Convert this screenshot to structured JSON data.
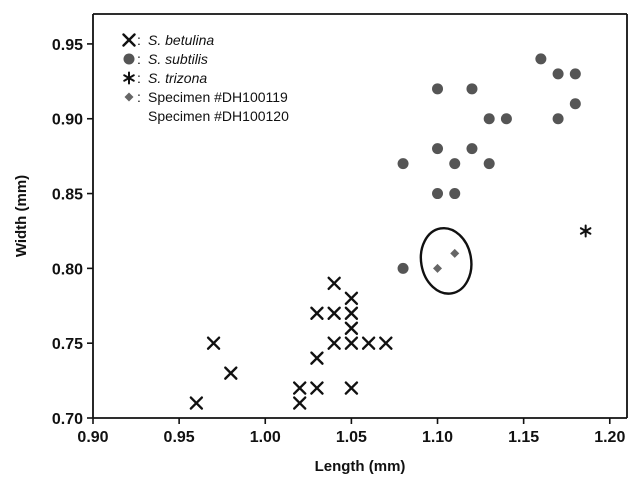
{
  "chart_data": {
    "type": "scatter",
    "xlabel": "Length (mm)",
    "ylabel": "Width (mm)",
    "xlim": [
      0.9,
      1.21
    ],
    "ylim": [
      0.7,
      0.97
    ],
    "x_ticks": [
      "0.90",
      "0.95",
      "1.00",
      "1.05",
      "1.10",
      "1.15",
      "1.20"
    ],
    "y_ticks": [
      "0.70",
      "0.75",
      "0.80",
      "0.85",
      "0.90",
      "0.95"
    ],
    "grid": false,
    "legend_position": "top-left",
    "legend": [
      {
        "symbol": "×",
        "separator": ":",
        "label": "S. betulina",
        "italic": true
      },
      {
        "symbol": "●",
        "separator": ":",
        "label": "S. subtilis",
        "italic": true
      },
      {
        "symbol": "*",
        "separator": ":",
        "label": "S. trizona",
        "italic": true
      },
      {
        "symbol": "◆",
        "separator": ":",
        "label": "Specimen #DH100119",
        "italic": false
      },
      {
        "symbol": "",
        "separator": "",
        "label": "Specimen #DH100120",
        "italic": false
      }
    ],
    "series": [
      {
        "name": "S. betulina",
        "marker": "x",
        "color": "#111111",
        "points": [
          [
            0.96,
            0.71
          ],
          [
            0.97,
            0.75
          ],
          [
            0.98,
            0.73
          ],
          [
            1.02,
            0.72
          ],
          [
            1.02,
            0.71
          ],
          [
            1.03,
            0.72
          ],
          [
            1.03,
            0.74
          ],
          [
            1.03,
            0.77
          ],
          [
            1.04,
            0.79
          ],
          [
            1.04,
            0.77
          ],
          [
            1.04,
            0.75
          ],
          [
            1.05,
            0.78
          ],
          [
            1.05,
            0.77
          ],
          [
            1.05,
            0.76
          ],
          [
            1.05,
            0.75
          ],
          [
            1.05,
            0.72
          ],
          [
            1.06,
            0.75
          ],
          [
            1.07,
            0.75
          ]
        ]
      },
      {
        "name": "S. subtilis",
        "marker": "circle",
        "color": "#555555",
        "points": [
          [
            1.08,
            0.87
          ],
          [
            1.08,
            0.8
          ],
          [
            1.1,
            0.92
          ],
          [
            1.1,
            0.88
          ],
          [
            1.1,
            0.85
          ],
          [
            1.11,
            0.87
          ],
          [
            1.11,
            0.85
          ],
          [
            1.12,
            0.92
          ],
          [
            1.12,
            0.88
          ],
          [
            1.13,
            0.9
          ],
          [
            1.13,
            0.87
          ],
          [
            1.14,
            0.9
          ],
          [
            1.16,
            0.94
          ],
          [
            1.17,
            0.93
          ],
          [
            1.17,
            0.9
          ],
          [
            1.18,
            0.93
          ],
          [
            1.18,
            0.91
          ]
        ]
      },
      {
        "name": "S. trizona",
        "marker": "asterisk",
        "color": "#111111",
        "points": [
          [
            1.186,
            0.825
          ]
        ]
      },
      {
        "name": "Specimen #DH100119 / #DH100120",
        "marker": "diamond",
        "color": "#666666",
        "points": [
          [
            1.1,
            0.8
          ],
          [
            1.11,
            0.81
          ]
        ]
      }
    ],
    "annotations": [
      {
        "type": "ellipse",
        "center": [
          1.105,
          0.805
        ],
        "rx": 0.0145,
        "ry": 0.022
      }
    ]
  }
}
